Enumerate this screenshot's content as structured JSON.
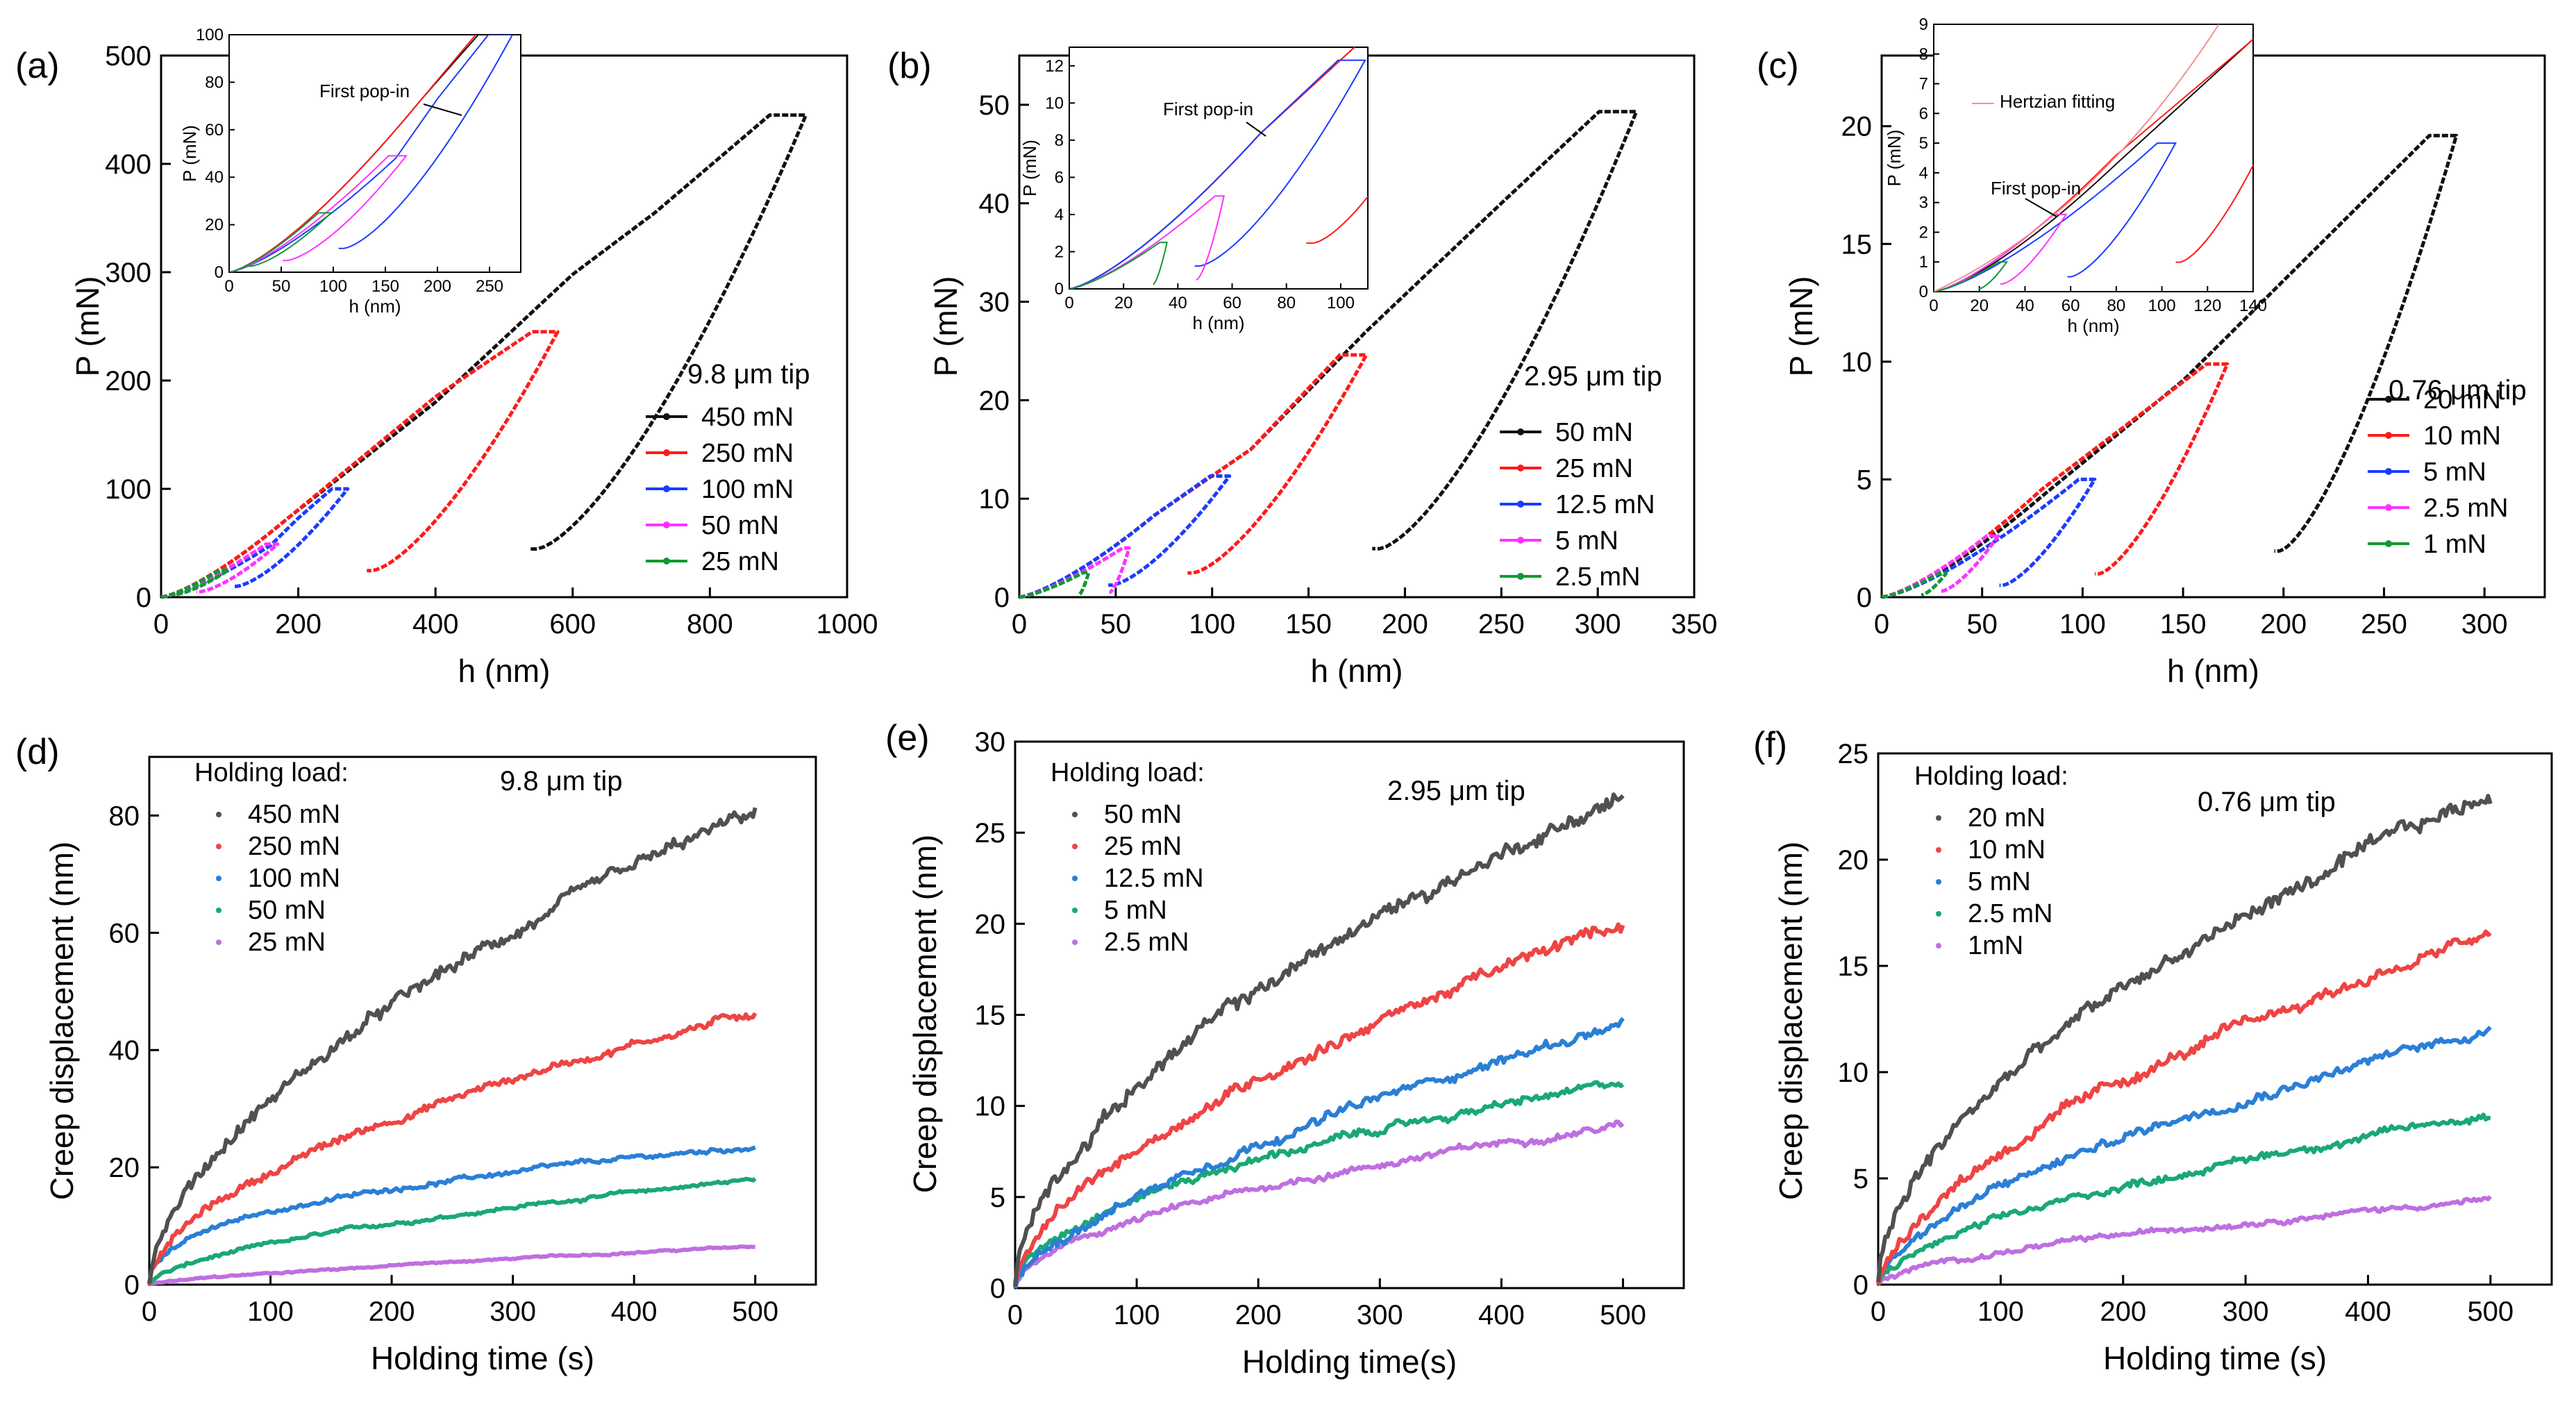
{
  "colors": {
    "black": "#111111",
    "red": "#ff1a1a",
    "blue": "#1a3cff",
    "magenta": "#ff33ff",
    "green": "#119933",
    "gray": "#505050",
    "cred": "#ee4444",
    "cblue": "#2a7fd6",
    "cgreen": "#1aa874",
    "cviolet": "#bf6fe0",
    "hertz": "#f29090"
  },
  "chart_data": [
    {
      "panel": "(a)",
      "type": "line",
      "title": "",
      "xlabel": "h (nm)",
      "ylabel": "P (mN)",
      "xlim": [
        0,
        1000
      ],
      "ylim": [
        0,
        500
      ],
      "xticks": [
        "0",
        "200",
        "400",
        "600",
        "800",
        "1000"
      ],
      "yticks": [
        "0",
        "100",
        "200",
        "300",
        "400",
        "500"
      ],
      "tip": "9.8 μm tip",
      "legend_position": "right",
      "series": [
        {
          "name": "450 mN",
          "color_key": "black",
          "hmax": 940,
          "hf": 548,
          "pmax": 445,
          "ctrl": [
            [
              185,
              73
            ],
            [
              400,
              180
            ],
            [
              600,
              298
            ],
            [
              720,
              355
            ]
          ]
        },
        {
          "name": "250 mN",
          "color_key": "red",
          "hmax": 578,
          "hf": 308,
          "pmax": 245,
          "ctrl": [
            [
              185,
              73
            ],
            [
              400,
              185
            ]
          ]
        },
        {
          "name": "100 mN",
          "color_key": "blue",
          "hmax": 272,
          "hf": 110,
          "pmax": 100,
          "ctrl": [
            [
              160,
              48
            ],
            [
              200,
              73
            ]
          ]
        },
        {
          "name": "50 mN",
          "color_key": "magenta",
          "hmax": 170,
          "hf": 55,
          "pmax": 49,
          "ctrl": []
        },
        {
          "name": "25 mN",
          "color_key": "green",
          "hmax": 98,
          "hf": 20,
          "pmax": 25,
          "ctrl": []
        }
      ],
      "inset": {
        "xlabel": "h (nm)",
        "ylabel": "P (mN)",
        "xlim": [
          0,
          280
        ],
        "ylim": [
          0,
          100
        ],
        "xticks": [
          "0",
          "50",
          "100",
          "150",
          "200",
          "250"
        ],
        "yticks": [
          "0",
          "20",
          "40",
          "60",
          "80",
          "100"
        ],
        "annotations": [
          "First pop-in"
        ]
      }
    },
    {
      "panel": "(b)",
      "type": "line",
      "xlabel": "h (nm)",
      "ylabel": "P (mN)",
      "xlim": [
        0,
        350
      ],
      "ylim": [
        0,
        55
      ],
      "xticks": [
        "0",
        "50",
        "100",
        "150",
        "200",
        "250",
        "300",
        "350"
      ],
      "yticks": [
        "0",
        "10",
        "20",
        "30",
        "40",
        "50"
      ],
      "tip": "2.95 μm tip",
      "legend_position": "right",
      "series": [
        {
          "name": "50 mN",
          "color_key": "black",
          "hmax": 320,
          "hf": 187,
          "pmax": 49.3,
          "ctrl": [
            [
              70,
              8.3
            ],
            [
              120,
              15
            ],
            [
              180,
              27
            ],
            [
              250,
              40
            ]
          ]
        },
        {
          "name": "25 mN",
          "color_key": "red",
          "hmax": 180,
          "hf": 90,
          "pmax": 24.6,
          "ctrl": [
            [
              70,
              8.3
            ],
            [
              120,
              15
            ]
          ]
        },
        {
          "name": "12.5 mN",
          "color_key": "blue",
          "hmax": 109,
          "hf": 48,
          "pmax": 12.3,
          "ctrl": [
            [
              70,
              8.3
            ]
          ]
        },
        {
          "name": "5 mN",
          "color_key": "magenta",
          "hmax": 57,
          "hf": 47,
          "pmax": 5,
          "ctrl": []
        },
        {
          "name": "2.5 mN",
          "color_key": "green",
          "hmax": 36,
          "hf": 31,
          "pmax": 2.5,
          "ctrl": []
        }
      ],
      "inset": {
        "xlabel": "h (nm)",
        "ylabel": "P (mN)",
        "xlim": [
          0,
          110
        ],
        "ylim": [
          0,
          13
        ],
        "xticks": [
          "0",
          "20",
          "40",
          "60",
          "80",
          "100"
        ],
        "yticks": [
          "0",
          "2",
          "4",
          "6",
          "8",
          "10",
          "12"
        ],
        "annotations": [
          "First pop-in"
        ]
      }
    },
    {
      "panel": "(c)",
      "type": "line",
      "xlabel": "h (nm)",
      "ylabel": "P (mN)",
      "xlim": [
        0,
        330
      ],
      "ylim": [
        0,
        23
      ],
      "xticks": [
        "0",
        "50",
        "100",
        "150",
        "200",
        "250",
        "300"
      ],
      "yticks": [
        "0",
        "5",
        "10",
        "15",
        "20"
      ],
      "tip": "0.76 μm tip",
      "legend_position": "right",
      "series": [
        {
          "name": "20 mN",
          "color_key": "black",
          "hmax": 286,
          "hf": 198,
          "pmax": 19.6,
          "ctrl": [
            [
              80,
              4.3
            ],
            [
              150,
              9.2
            ]
          ]
        },
        {
          "name": "10 mN",
          "color_key": "red",
          "hmax": 172,
          "hf": 108,
          "pmax": 9.9,
          "ctrl": [
            [
              80,
              4.6
            ]
          ]
        },
        {
          "name": "5 mN",
          "color_key": "blue",
          "hmax": 106,
          "hf": 60,
          "pmax": 5,
          "ctrl": []
        },
        {
          "name": "2.5 mN",
          "color_key": "magenta",
          "hmax": 58,
          "hf": 30,
          "pmax": 2.6,
          "ctrl": []
        },
        {
          "name": "1 mN",
          "color_key": "green",
          "hmax": 32,
          "hf": 20,
          "pmax": 1,
          "ctrl": []
        }
      ],
      "inset": {
        "xlabel": "h (nm)",
        "ylabel": "P (mN)",
        "xlim": [
          0,
          140
        ],
        "ylim": [
          0,
          9
        ],
        "xticks": [
          "0",
          "20",
          "40",
          "60",
          "80",
          "100",
          "120",
          "140"
        ],
        "yticks": [
          "0",
          "1",
          "2",
          "3",
          "4",
          "5",
          "6",
          "7",
          "8",
          "9"
        ],
        "annotations": [
          "Hertzian fitting",
          "First pop-in"
        ]
      }
    },
    {
      "panel": "(d)",
      "type": "scatter",
      "xlabel": "Holding time (s)",
      "ylabel": "Creep displacement (nm)",
      "xlim": [
        0,
        550
      ],
      "ylim": [
        0,
        90
      ],
      "xticks": [
        "0",
        "100",
        "200",
        "300",
        "400",
        "500"
      ],
      "yticks": [
        "0",
        "20",
        "40",
        "60",
        "80"
      ],
      "legend_title": "Holding load:",
      "tip": "9.8 μm tip",
      "series": [
        {
          "name": "450 mN",
          "color_key": "gray",
          "final": 80.5,
          "exp": 0.58
        },
        {
          "name": "250 mN",
          "color_key": "cred",
          "final": 46.5,
          "exp": 0.55
        },
        {
          "name": "100 mN",
          "color_key": "cblue",
          "final": 23.5,
          "exp": 0.4
        },
        {
          "name": "50 mN",
          "color_key": "cgreen",
          "final": 18,
          "exp": 0.6
        },
        {
          "name": "25 mN",
          "color_key": "cviolet",
          "final": 6.5,
          "exp": 0.75
        }
      ]
    },
    {
      "panel": "(e)",
      "type": "scatter",
      "xlabel": "Holding time(s)",
      "ylabel": "Creep displacement (nm)",
      "xlim": [
        0,
        550
      ],
      "ylim": [
        0,
        30
      ],
      "xticks": [
        "0",
        "100",
        "200",
        "300",
        "400",
        "500"
      ],
      "yticks": [
        "0",
        "5",
        "10",
        "15",
        "20",
        "25",
        "30"
      ],
      "legend_title": "Holding load:",
      "tip": "2.95 μm tip",
      "series": [
        {
          "name": "50 mN",
          "color_key": "gray",
          "final": 27,
          "exp": 0.55
        },
        {
          "name": "25 mN",
          "color_key": "cred",
          "final": 20,
          "exp": 0.6
        },
        {
          "name": "12.5 mN",
          "color_key": "cblue",
          "final": 14.5,
          "exp": 0.65
        },
        {
          "name": "5 mN",
          "color_key": "cgreen",
          "final": 11.2,
          "exp": 0.5
        },
        {
          "name": "2.5 mN",
          "color_key": "cviolet",
          "final": 9,
          "exp": 0.55
        }
      ]
    },
    {
      "panel": "(f)",
      "type": "scatter",
      "xlabel": "Holding time (s)",
      "ylabel": "Creep displacement (nm)",
      "xlim": [
        0,
        550
      ],
      "ylim": [
        0,
        25
      ],
      "xticks": [
        "0",
        "100",
        "200",
        "300",
        "400",
        "500"
      ],
      "yticks": [
        "0",
        "5",
        "10",
        "15",
        "20",
        "25"
      ],
      "legend_title": "Holding load:",
      "tip": "0.76 μm tip",
      "series": [
        {
          "name": "20 mN",
          "color_key": "gray",
          "final": 23,
          "exp": 0.55
        },
        {
          "name": "10 mN",
          "color_key": "cred",
          "final": 16.5,
          "exp": 0.6
        },
        {
          "name": "5 mN",
          "color_key": "cblue",
          "final": 12,
          "exp": 0.6
        },
        {
          "name": "2.5 mN",
          "color_key": "cgreen",
          "final": 8,
          "exp": 0.6
        },
        {
          "name": "1mN",
          "color_key": "cviolet",
          "final": 4,
          "exp": 0.6
        }
      ]
    }
  ]
}
